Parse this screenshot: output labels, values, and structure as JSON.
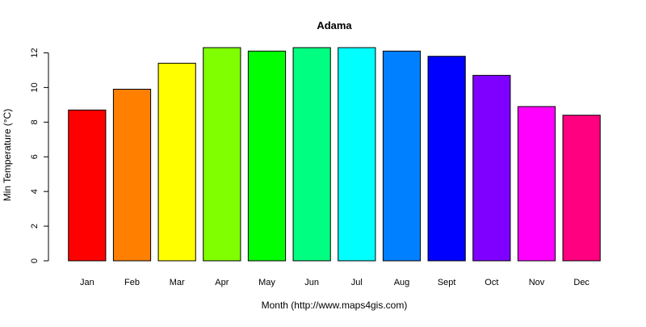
{
  "chart_data": {
    "type": "bar",
    "title": "Adama",
    "xlabel": "Month (http://www.maps4gis.com)",
    "ylabel": "Min Temperature (°C)",
    "categories": [
      "Jan",
      "Feb",
      "Mar",
      "Apr",
      "May",
      "Jun",
      "Jul",
      "Aug",
      "Sept",
      "Oct",
      "Nov",
      "Dec"
    ],
    "values": [
      8.7,
      9.9,
      11.4,
      12.3,
      12.1,
      12.3,
      12.3,
      12.1,
      11.8,
      10.7,
      8.9,
      8.4
    ],
    "colors": [
      "#FF0000",
      "#FF8000",
      "#FFFF00",
      "#80FF00",
      "#00FF00",
      "#00FF80",
      "#00FFFF",
      "#0080FF",
      "#0000FF",
      "#8000FF",
      "#FF00FF",
      "#FF0080"
    ],
    "ylim": [
      0,
      12.3
    ],
    "yticks": [
      0,
      2,
      4,
      6,
      8,
      10,
      12
    ],
    "grid": false,
    "legend": "none"
  }
}
